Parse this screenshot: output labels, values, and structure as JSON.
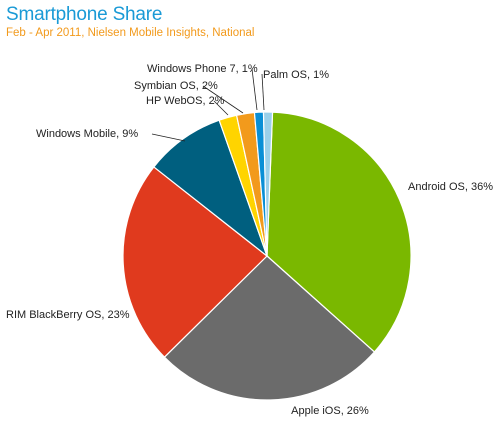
{
  "chart_data": {
    "type": "pie",
    "title": "Smartphone Share",
    "subtitle": "Feb - Apr 2011, Nielsen Mobile Insights, National",
    "slices": [
      {
        "name": "Android OS",
        "value": 36,
        "label": "Android OS, 36%",
        "color": "#7ab800"
      },
      {
        "name": "Apple iOS",
        "value": 26,
        "label": "Apple iOS, 26%",
        "color": "#6b6b6b"
      },
      {
        "name": "RIM BlackBerry OS",
        "value": 23,
        "label": "RIM BlackBerry OS, 23%",
        "color": "#e03a1e"
      },
      {
        "name": "Windows Mobile",
        "value": 9,
        "label": "Windows Mobile, 9%",
        "color": "#005f7f"
      },
      {
        "name": "HP WebOS",
        "value": 2,
        "label": "HP WebOS, 2%",
        "color": "#ffd400"
      },
      {
        "name": "Symbian OS",
        "value": 2,
        "label": "Symbian OS, 2%",
        "color": "#f29a1c"
      },
      {
        "name": "Windows Phone 7",
        "value": 1,
        "label": "Windows Phone 7, 1%",
        "color": "#0a8fd6"
      },
      {
        "name": "Palm OS",
        "value": 1,
        "label": "Palm OS, 1%",
        "color": "#9ad0ea"
      }
    ]
  }
}
